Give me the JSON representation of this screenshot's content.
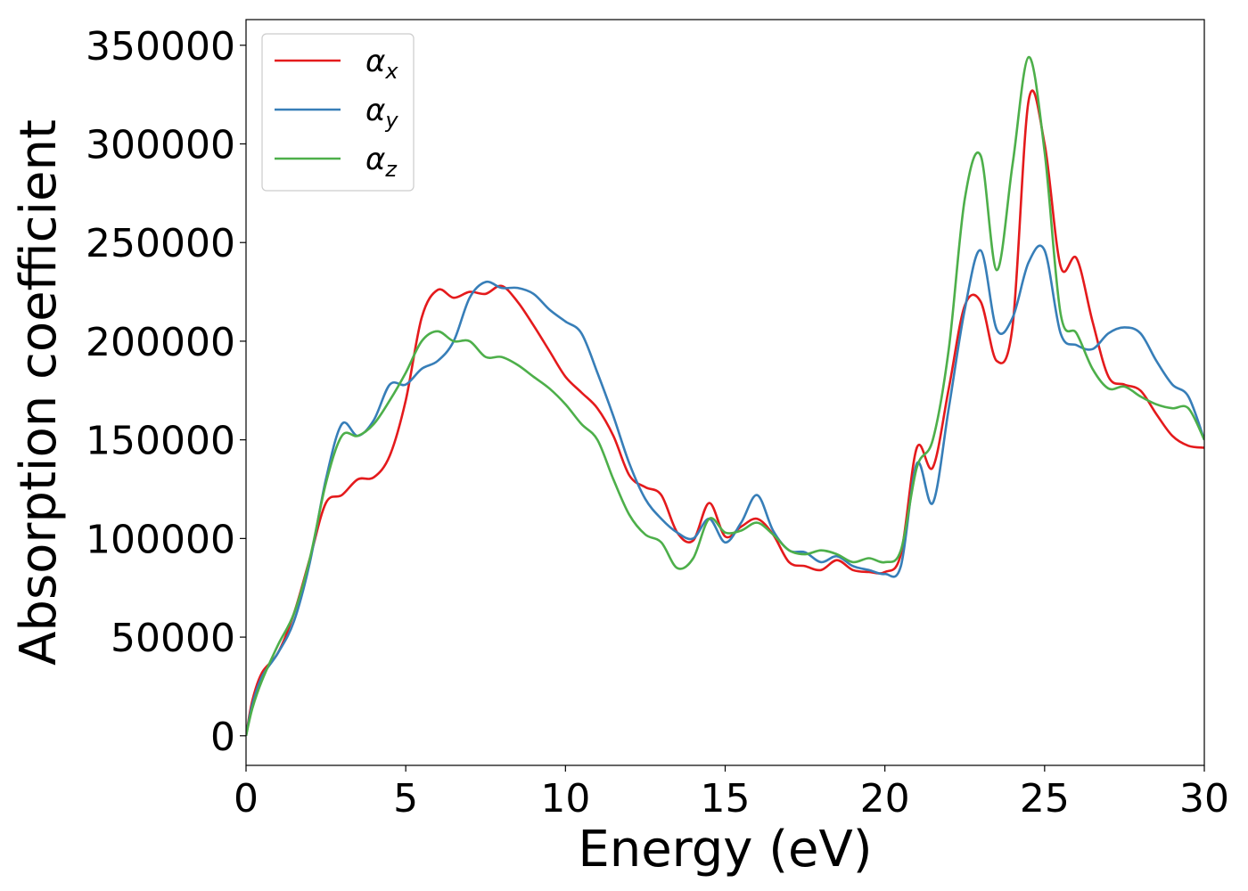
{
  "chart_data": {
    "type": "line",
    "title": "",
    "xlabel": "Energy (eV)",
    "ylabel": "Absorption coefficient",
    "xlim": [
      0,
      30
    ],
    "ylim": [
      -15000,
      363000
    ],
    "xticks": [
      0,
      5,
      10,
      15,
      20,
      25,
      30
    ],
    "xtick_labels": [
      "0",
      "5",
      "10",
      "15",
      "20",
      "25",
      "30"
    ],
    "yticks": [
      0,
      50000,
      100000,
      150000,
      200000,
      250000,
      300000,
      350000
    ],
    "ytick_labels": [
      "0",
      "50000",
      "100000",
      "150000",
      "200000",
      "250000",
      "300000",
      "350000"
    ],
    "grid": false,
    "legend_position": "top-left",
    "series": [
      {
        "name": "αx",
        "symbol": "α",
        "subscript": "x",
        "color": "#e41a1c",
        "x": [
          0,
          0.2,
          0.5,
          1,
          1.5,
          2,
          2.5,
          3,
          3.5,
          4,
          4.5,
          5,
          5.5,
          6,
          6.5,
          7,
          7.5,
          8,
          8.5,
          9,
          9.5,
          10,
          10.5,
          11,
          11.5,
          12,
          12.5,
          13,
          13.5,
          14,
          14.5,
          15,
          15.5,
          16,
          16.5,
          17,
          17.5,
          18,
          18.5,
          19,
          19.5,
          20,
          20.5,
          21,
          21.5,
          22,
          22.5,
          23,
          23.5,
          24,
          24.5,
          25,
          25.5,
          26,
          26.5,
          27,
          27.5,
          28,
          28.5,
          29,
          29.5,
          30
        ],
        "y": [
          0,
          18000,
          32000,
          42000,
          62000,
          90000,
          118000,
          122000,
          130000,
          131000,
          142000,
          170000,
          212000,
          226000,
          222000,
          225000,
          224000,
          228000,
          220000,
          208000,
          195000,
          182000,
          174000,
          166000,
          152000,
          132000,
          126000,
          122000,
          103000,
          99000,
          118000,
          101000,
          106000,
          110000,
          102000,
          88000,
          86000,
          84000,
          89000,
          84000,
          83000,
          83000,
          92000,
          146000,
          136000,
          176000,
          218000,
          220000,
          190000,
          208000,
          322000,
          300000,
          238000,
          242000,
          210000,
          182000,
          178000,
          175000,
          163000,
          152000,
          147000,
          146000
        ]
      },
      {
        "name": "αy",
        "symbol": "α",
        "subscript": "y",
        "color": "#377eb8",
        "x": [
          0,
          0.2,
          0.5,
          1,
          1.5,
          2,
          2.5,
          3,
          3.5,
          4,
          4.5,
          5,
          5.5,
          6,
          6.5,
          7,
          7.5,
          8,
          8.5,
          9,
          9.5,
          10,
          10.5,
          11,
          11.5,
          12,
          12.5,
          13,
          13.5,
          14,
          14.5,
          15,
          15.5,
          16,
          16.5,
          17,
          17.5,
          18,
          18.5,
          19,
          19.5,
          20,
          20.5,
          21,
          21.5,
          22,
          22.5,
          23,
          23.5,
          24,
          24.5,
          25,
          25.5,
          26,
          26.5,
          27,
          27.5,
          28,
          28.5,
          29,
          29.5,
          30
        ],
        "y": [
          0,
          16000,
          30000,
          42000,
          58000,
          88000,
          130000,
          158000,
          152000,
          160000,
          178000,
          178000,
          186000,
          190000,
          200000,
          222000,
          230000,
          227000,
          227000,
          224000,
          216000,
          210000,
          204000,
          184000,
          162000,
          138000,
          120000,
          110000,
          103000,
          100000,
          110000,
          98000,
          108000,
          122000,
          104000,
          94000,
          93000,
          88000,
          91000,
          86000,
          84000,
          82000,
          86000,
          138000,
          118000,
          166000,
          216000,
          246000,
          206000,
          212000,
          240000,
          246000,
          204000,
          198000,
          196000,
          204000,
          207000,
          204000,
          190000,
          178000,
          172000,
          150000
        ]
      },
      {
        "name": "αz",
        "symbol": "α",
        "subscript": "z",
        "color": "#4daf4a",
        "x": [
          0,
          0.2,
          0.5,
          1,
          1.5,
          2,
          2.5,
          3,
          3.5,
          4,
          4.5,
          5,
          5.5,
          6,
          6.5,
          7,
          7.5,
          8,
          8.5,
          9,
          9.5,
          10,
          10.5,
          11,
          11.5,
          12,
          12.5,
          13,
          13.5,
          14,
          14.5,
          15,
          15.5,
          16,
          16.5,
          17,
          17.5,
          18,
          18.5,
          19,
          19.5,
          20,
          20.5,
          21,
          21.5,
          22,
          22.5,
          23,
          23.5,
          24,
          24.5,
          25,
          25.5,
          26,
          26.5,
          27,
          27.5,
          28,
          28.5,
          29,
          29.5,
          30
        ],
        "y": [
          0,
          14000,
          28000,
          46000,
          62000,
          90000,
          128000,
          152000,
          152000,
          158000,
          170000,
          184000,
          200000,
          205000,
          200000,
          200000,
          192000,
          192000,
          188000,
          182000,
          176000,
          168000,
          158000,
          150000,
          130000,
          112000,
          102000,
          98000,
          85000,
          90000,
          110000,
          103000,
          104000,
          108000,
          102000,
          94000,
          92000,
          94000,
          92000,
          88000,
          90000,
          88000,
          94000,
          136000,
          150000,
          196000,
          272000,
          294000,
          236000,
          290000,
          344000,
          296000,
          214000,
          204000,
          186000,
          176000,
          177000,
          172000,
          168000,
          166000,
          166000,
          150000
        ]
      }
    ]
  }
}
